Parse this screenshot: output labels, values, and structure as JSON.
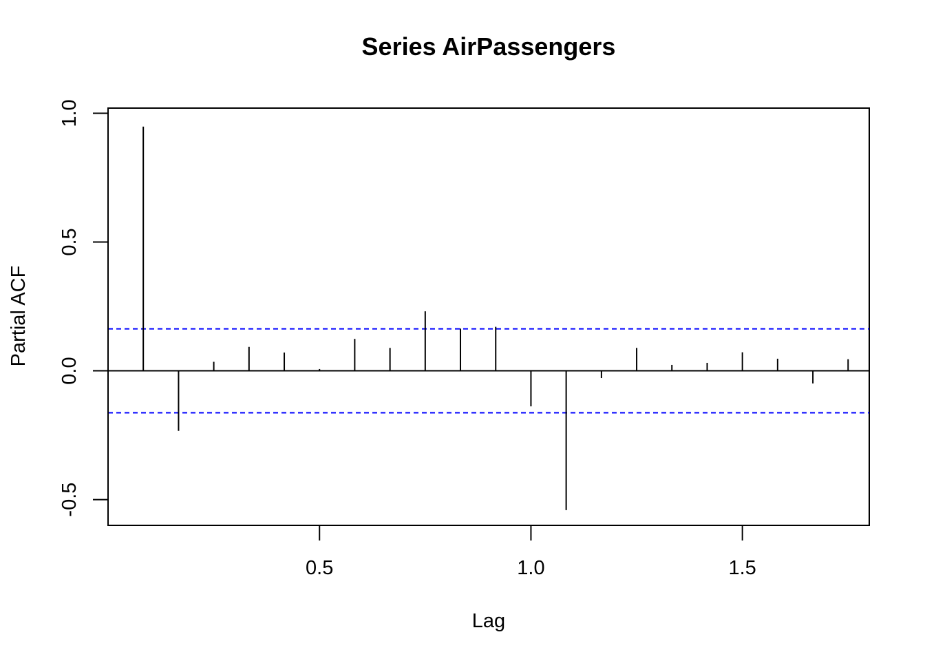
{
  "chart_data": {
    "type": "bar",
    "title": "Series  AirPassengers",
    "xlabel": "Lag",
    "ylabel": "Partial ACF",
    "xlim": [
      0.0,
      1.8
    ],
    "ylim": [
      -0.6,
      1.02
    ],
    "xticks": [
      0.5,
      1.0,
      1.5
    ],
    "xtick_labels": [
      "0.5",
      "1.0",
      "1.5"
    ],
    "yticks": [
      -0.5,
      0.0,
      0.5,
      1.0
    ],
    "ytick_labels": [
      "-0.5",
      "0.0",
      "0.5",
      "1.0"
    ],
    "confidence_bound": 0.163,
    "grid": false,
    "colors": {
      "bars": "#000000",
      "bounds": "#0000ff",
      "zero": "#000000"
    },
    "lags": [
      0.0833,
      0.1667,
      0.25,
      0.3333,
      0.4167,
      0.5,
      0.5833,
      0.6667,
      0.75,
      0.8333,
      0.9167,
      1.0,
      1.0833,
      1.1667,
      1.25,
      1.3333,
      1.4167,
      1.5,
      1.5833,
      1.6667,
      1.75
    ],
    "values": [
      0.948,
      -0.233,
      0.035,
      0.093,
      0.071,
      0.007,
      0.124,
      0.089,
      0.231,
      0.164,
      0.171,
      -0.138,
      -0.541,
      -0.028,
      0.089,
      0.023,
      0.031,
      0.072,
      0.047,
      -0.049,
      0.045
    ]
  }
}
